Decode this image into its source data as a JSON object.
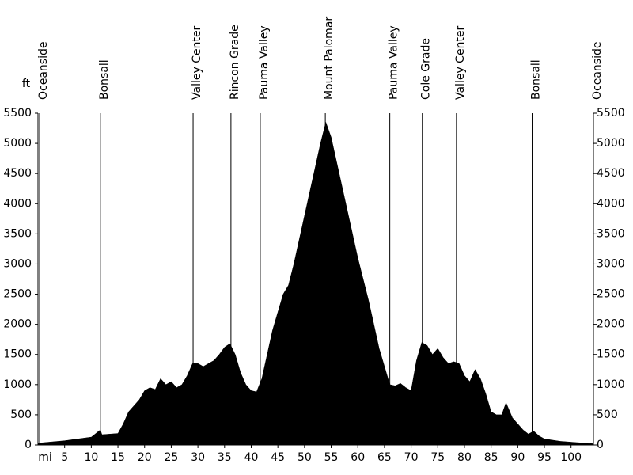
{
  "chart_data": {
    "type": "area",
    "y_label": "ft",
    "x_label": "mi",
    "color": "#000000",
    "x": [
      0,
      5,
      10,
      11.7,
      12,
      15,
      16,
      17,
      18,
      19,
      20,
      21,
      22,
      23,
      24,
      25,
      26,
      27,
      28,
      29,
      30,
      31,
      32,
      33,
      34,
      35,
      36,
      37,
      38,
      39,
      40,
      41,
      42,
      43,
      44,
      45,
      46,
      47,
      48,
      49,
      50,
      51,
      52,
      53,
      54,
      55,
      56,
      57,
      58,
      59,
      60,
      61,
      62,
      63,
      64,
      65,
      66,
      67,
      68,
      69,
      70,
      71,
      72,
      73,
      74,
      75,
      76,
      77,
      78,
      79,
      80,
      81,
      82,
      83,
      84,
      85,
      86,
      87,
      87.8,
      89,
      90,
      91,
      92,
      93,
      94,
      95,
      98,
      101,
      104.2
    ],
    "values": [
      30,
      70,
      130,
      250,
      170,
      190,
      350,
      550,
      650,
      750,
      900,
      950,
      920,
      1100,
      1000,
      1050,
      950,
      1000,
      1150,
      1350,
      1350,
      1300,
      1350,
      1400,
      1500,
      1620,
      1680,
      1500,
      1200,
      1000,
      900,
      880,
      1100,
      1500,
      1900,
      2200,
      2500,
      2650,
      3000,
      3400,
      3800,
      4200,
      4600,
      5000,
      5350,
      5100,
      4700,
      4300,
      3900,
      3500,
      3100,
      2750,
      2400,
      2000,
      1600,
      1300,
      1000,
      980,
      1020,
      950,
      900,
      1400,
      1700,
      1650,
      1500,
      1600,
      1450,
      1350,
      1380,
      1350,
      1150,
      1050,
      1250,
      1100,
      850,
      550,
      500,
      500,
      700,
      450,
      350,
      250,
      180,
      230,
      150,
      100,
      60,
      40,
      20
    ],
    "xlim": [
      0,
      104.2
    ],
    "ylim": [
      0,
      5500
    ],
    "y2lim": [
      0,
      5500
    ],
    "xticks": [
      5,
      10,
      15,
      20,
      25,
      30,
      35,
      40,
      45,
      50,
      55,
      60,
      65,
      70,
      75,
      80,
      85,
      90,
      95,
      100
    ],
    "yticks": [
      0,
      500,
      1000,
      1500,
      2000,
      2500,
      3000,
      3500,
      4000,
      4500,
      5000,
      5500
    ],
    "y2ticks": [
      0,
      500,
      1000,
      1500,
      2000,
      2500,
      3000,
      3500,
      4000,
      4500,
      5000,
      5500
    ],
    "landmarks": [
      {
        "label": "Oceanside",
        "x": 0.3
      },
      {
        "label": "Bonsall",
        "x": 11.7
      },
      {
        "label": "Valley Center",
        "x": 29.1
      },
      {
        "label": "Rincon Grade",
        "x": 36.2
      },
      {
        "label": "Pauma Valley",
        "x": 41.7
      },
      {
        "label": "Mount Palomar",
        "x": 53.9
      },
      {
        "label": "Pauma Valley",
        "x": 66.0
      },
      {
        "label": "Cole Grade",
        "x": 72.1
      },
      {
        "label": "Valley Center",
        "x": 78.5
      },
      {
        "label": "Bonsall",
        "x": 92.7
      },
      {
        "label": "Oceanside",
        "x": 104.2
      }
    ]
  }
}
